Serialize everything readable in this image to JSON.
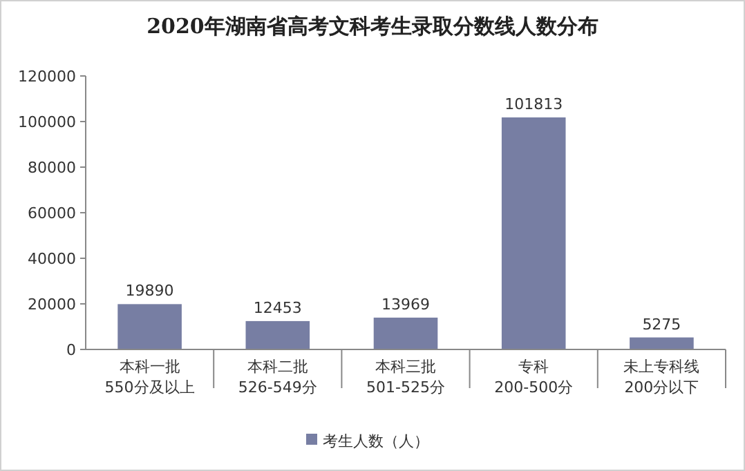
{
  "chart_data": {
    "type": "bar",
    "title": "2020年湖南省高考文科考生录取分数线人数分布",
    "categories": [
      "本科一批\n550分及以上",
      "本科二批\n526-549分",
      "本科三批\n501-525分",
      "专科\n200-500分",
      "未上专科线\n200分以下"
    ],
    "series": [
      {
        "name": "考生人数（人）",
        "color": "#777ea3",
        "values": [
          19890,
          12453,
          13969,
          101813,
          5275
        ]
      }
    ],
    "ylim": [
      0,
      120000
    ],
    "yticks": [
      0,
      20000,
      40000,
      60000,
      80000,
      100000,
      120000
    ],
    "data_labels": true,
    "legend": "bottom"
  }
}
